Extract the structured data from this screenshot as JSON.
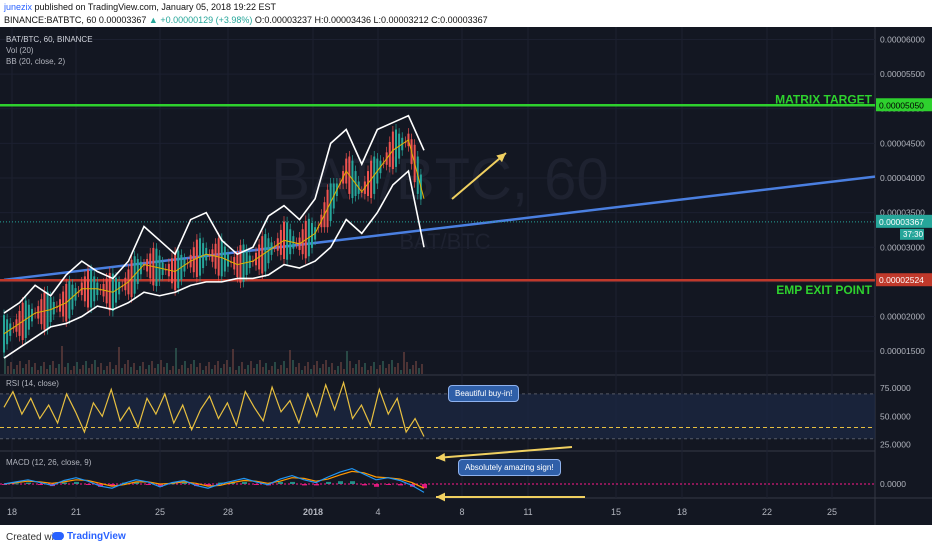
{
  "header": {
    "author": "junezix",
    "published": " published on TradingView.com, January 05, 2018 19:22 EST",
    "symbol_line": "BINANCE:BATBTC, 60 0.00003367",
    "change": "▲ +0.00000129 (+3.98%)",
    "ohlc": "O:0.00003237 H:0.00003436 L:0.00003212 C:0.00003367"
  },
  "legend": {
    "symbol": "BAT/BTC, 60, BINANCE",
    "vol": "Vol (20)",
    "bb": "BB (20, close, 2)",
    "rsi": "RSI (14, close)",
    "macd": "MACD (12, 26, close, 9)"
  },
  "watermark": {
    "symbol": "BAT/BTC, 60",
    "pair": "BAT/BTC"
  },
  "annotations": {
    "matrix_target": "MATRIX TARGET",
    "emp_exit": "EMP EXIT POINT",
    "buy_in": "Beautiful buy-in!",
    "amazing": "Absolutely amazing sign!"
  },
  "colors": {
    "background": "#131722",
    "target_line": "#2ed12e",
    "exit_line": "#c0392b",
    "trend_line": "#4a7fe0",
    "bb_band": "#ffffff",
    "bb_basis": "#e0b400",
    "arrow": "#f0d060",
    "rsi_line": "#e8c040",
    "macd_line": "#2196f3",
    "signal_line": "#ff9800",
    "hist_neg": "#ff1a8c"
  },
  "footer": {
    "created": "Created with",
    "brand": "TradingView"
  },
  "chart_data": [
    {
      "type": "line",
      "title": "BAT/BTC, 60, BINANCE",
      "x_ticks": [
        "18",
        "21",
        "25",
        "28",
        "2018",
        "4",
        "8",
        "11",
        "15",
        "18",
        "22",
        "25"
      ],
      "y_ticks": [
        1.5e-05,
        2e-05,
        2.5e-05,
        3e-05,
        3.5e-05,
        4e-05,
        4.5e-05,
        5e-05,
        5.5e-05,
        6e-05
      ],
      "y_tick_labels": [
        "0.00001500",
        "0.00002000",
        "0.00002500",
        "0.00003000",
        "0.00003500",
        "0.00004000",
        "0.00004500",
        "0.00005000",
        "0.00005500",
        "0.00006000"
      ],
      "ylim": [
        1.17e-05,
        6.18e-05
      ],
      "last_price": 3.367e-05,
      "last_price_label": "0.00003367",
      "countdown": "37:30",
      "levels": [
        {
          "name": "MATRIX TARGET",
          "value": 5.05e-05,
          "label": "0.00005050"
        },
        {
          "name": "EMP EXIT POINT",
          "value": 2.524e-05,
          "label": "0.00002524"
        }
      ],
      "trendline": {
        "from": [
          "18",
          2.53e-05
        ],
        "to": [
          "25",
          4.02e-05
        ]
      },
      "series": [
        {
          "name": "BB (20, close, 2)",
          "role": "upper",
          "values": [
            2.05e-05,
            2.2e-05,
            2.45e-05,
            2.3e-05,
            2.6e-05,
            2.8e-05,
            2.65e-05,
            2.55e-05,
            2.8e-05,
            3.3e-05,
            3.1e-05,
            2.9e-05,
            3.4e-05,
            3.5e-05,
            3.1e-05,
            2.9e-05,
            3e-05,
            3.45e-05,
            3.6e-05,
            3.4e-05,
            3.7e-05,
            4.5e-05,
            4.7e-05,
            4.2e-05,
            4.7e-05,
            4.8e-05,
            4.9e-05,
            4.4e-05
          ]
        },
        {
          "name": "BB (20, close, 2)",
          "role": "basis",
          "values": [
            1.75e-05,
            1.9e-05,
            2.05e-05,
            2.1e-05,
            2.2e-05,
            2.4e-05,
            2.4e-05,
            2.35e-05,
            2.5e-05,
            2.75e-05,
            2.7e-05,
            2.65e-05,
            2.8e-05,
            2.9e-05,
            2.85e-05,
            2.75e-05,
            2.8e-05,
            2.95e-05,
            3.1e-05,
            3.05e-05,
            3.2e-05,
            3.65e-05,
            4.1e-05,
            3.8e-05,
            4.1e-05,
            4.4e-05,
            4.55e-05,
            3.7e-05
          ]
        },
        {
          "name": "BB (20, close, 2)",
          "role": "lower",
          "values": [
            1.4e-05,
            1.55e-05,
            1.7e-05,
            1.85e-05,
            1.9e-05,
            2e-05,
            2.15e-05,
            2.1e-05,
            2.2e-05,
            2.35e-05,
            2.3e-05,
            2.35e-05,
            2.45e-05,
            2.5e-05,
            2.5e-05,
            2.55e-05,
            2.55e-05,
            2.6e-05,
            2.75e-05,
            2.7e-05,
            2.8e-05,
            3e-05,
            3.4e-05,
            3.2e-05,
            3.5e-05,
            3.9e-05,
            4.1e-05,
            3e-05
          ]
        }
      ]
    },
    {
      "type": "line",
      "title": "RSI (14, close)",
      "y_tick_labels": [
        "25.0000",
        "50.0000",
        "75.0000"
      ],
      "ylim": [
        20,
        85
      ],
      "levels": [
        30,
        70,
        40
      ],
      "series": [
        {
          "name": "RSI",
          "values": [
            58,
            72,
            52,
            66,
            48,
            60,
            44,
            70,
            54,
            36,
            62,
            50,
            74,
            46,
            58,
            40,
            66,
            52,
            70,
            44,
            60,
            38,
            56,
            68,
            48,
            62,
            42,
            72,
            58,
            46,
            76,
            54,
            64,
            44,
            70,
            50,
            78,
            56,
            80,
            48,
            60,
            42,
            74,
            52,
            66,
            36,
            48,
            32
          ]
        }
      ]
    },
    {
      "type": "line",
      "title": "MACD (12, 26, close, 9)",
      "y_tick_labels": [
        "0.0000"
      ],
      "series": [
        {
          "name": "MACD",
          "values": [
            0.0,
            0.3,
            0.6,
            0.2,
            -0.2,
            0.5,
            0.9,
            0.4,
            -0.3,
            -0.6,
            0.1,
            0.6,
            0.3,
            -0.4,
            0.2,
            0.5,
            -0.2,
            -0.6,
            0.0,
            0.4,
            0.8,
            0.3,
            -0.1,
            0.7,
            1.2,
            0.6,
            0.2,
            1.0,
            1.7,
            2.2,
            1.4,
            0.6,
            0.9,
            0.5,
            -0.2,
            -1.2
          ]
        },
        {
          "name": "Signal",
          "values": [
            0.0,
            0.2,
            0.4,
            0.3,
            0.1,
            0.3,
            0.6,
            0.5,
            0.1,
            -0.3,
            -0.1,
            0.3,
            0.3,
            0.0,
            0.1,
            0.3,
            0.1,
            -0.3,
            -0.2,
            0.2,
            0.5,
            0.4,
            0.1,
            0.4,
            0.9,
            0.8,
            0.4,
            0.7,
            1.3,
            1.8,
            1.6,
            1.0,
            0.9,
            0.7,
            0.2,
            -0.6
          ]
        }
      ]
    }
  ]
}
